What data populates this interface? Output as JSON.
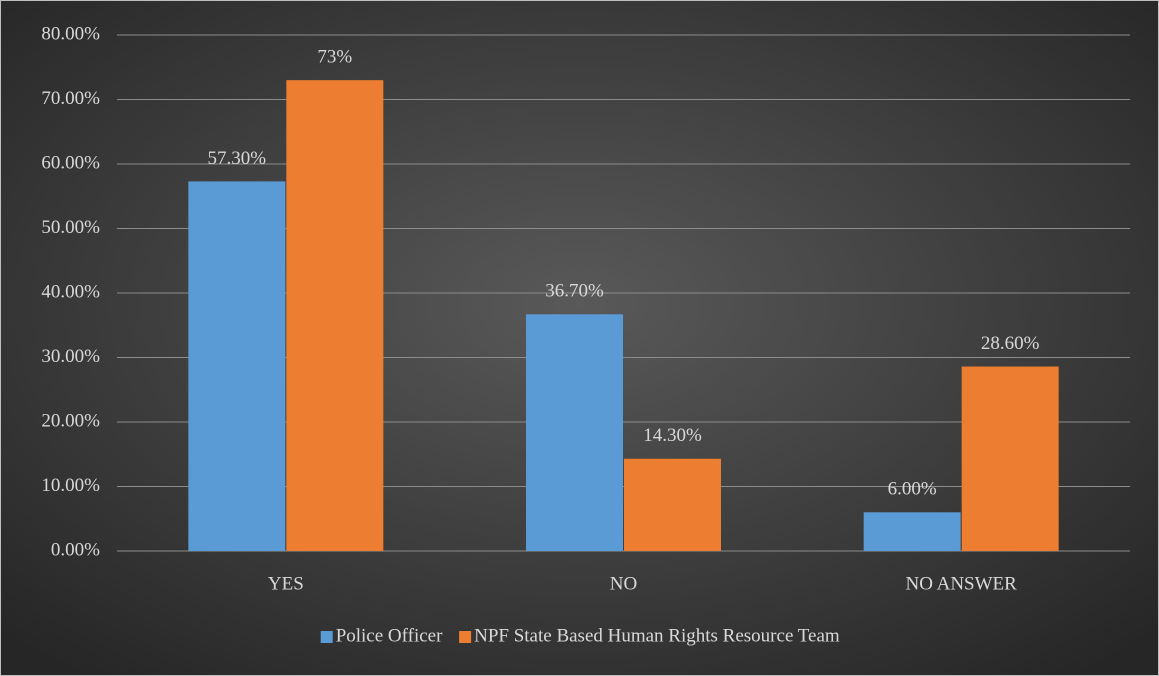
{
  "chart_data": {
    "type": "bar",
    "categories": [
      "YES",
      "NO",
      "NO ANSWER"
    ],
    "series": [
      {
        "name": "Police Officer",
        "color": "#5b9bd5",
        "values": [
          57.3,
          36.7,
          6
        ],
        "value_labels": [
          "57.30%",
          "36.70%",
          "6.00%"
        ]
      },
      {
        "name": "NPF State Based Human Rights Resource Team",
        "color": "#ed7d31",
        "values": [
          73,
          14.3,
          28.6
        ],
        "value_labels": [
          "73%",
          "14.30%",
          "28.60%"
        ]
      }
    ],
    "ylim": [
      0,
      80
    ],
    "yticks": [
      {
        "value": 0,
        "label": "0.00%"
      },
      {
        "value": 10,
        "label": "10.00%"
      },
      {
        "value": 20,
        "label": "20.00%"
      },
      {
        "value": 30,
        "label": "30.00%"
      },
      {
        "value": 40,
        "label": "40.00%"
      },
      {
        "value": 50,
        "label": "50.00%"
      },
      {
        "value": 60,
        "label": "60.00%"
      },
      {
        "value": 70,
        "label": "70.00%"
      },
      {
        "value": 80,
        "label": "80.00%"
      }
    ],
    "grid": true,
    "legend": "bottom"
  }
}
